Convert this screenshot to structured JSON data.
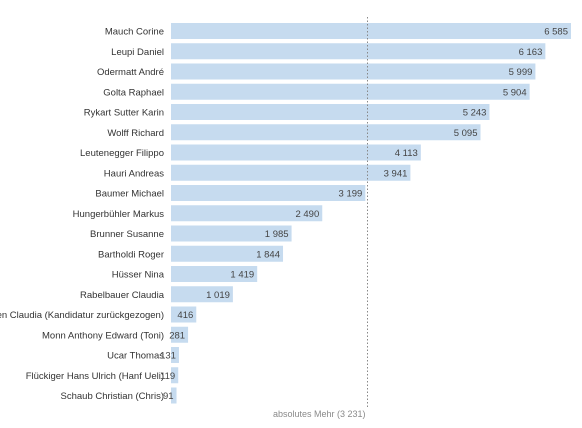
{
  "chart_data": {
    "type": "bar",
    "orientation": "horizontal",
    "categories": [
      "Mauch Corine",
      "Leupi Daniel",
      "Odermatt André",
      "Golta Raphael",
      "Rykart Sutter Karin",
      "Wolff Richard",
      "Leutenegger Filippo",
      "Hauri Andreas",
      "Baumer Michael",
      "Hungerbühler Markus",
      "Brunner Susanne",
      "Bartholdi Roger",
      "Hüsser Nina",
      "Rabelbauer Claudia",
      "Nielsen Claudia (Kandidatur zurückgezogen)",
      "Monn Anthony Edward (Toni)",
      "Ucar Thomas",
      "Flückiger Hans Ulrich (Hanf Ueli)",
      "Schaub Christian (Chris)"
    ],
    "values": [
      6585,
      6163,
      5999,
      5904,
      5243,
      5095,
      4113,
      3941,
      3199,
      2490,
      1985,
      1844,
      1419,
      1019,
      416,
      281,
      131,
      119,
      91
    ],
    "value_labels": [
      "6 585",
      "6 163",
      "5 999",
      "5 904",
      "5 243",
      "5 095",
      "4 113",
      "3 941",
      "3 199",
      "2 490",
      "1 985",
      "1 844",
      "1 419",
      "1 019",
      "416",
      "281",
      "131",
      "119",
      "91"
    ],
    "xlim": [
      0,
      6585
    ],
    "threshold": {
      "value": 3231,
      "label": "absolutes Mehr (3 231)",
      "style": "dotted"
    },
    "grid": false,
    "colors": {
      "bar": "#c6dbef",
      "threshold_line": "#888888",
      "text": "#333333"
    }
  }
}
